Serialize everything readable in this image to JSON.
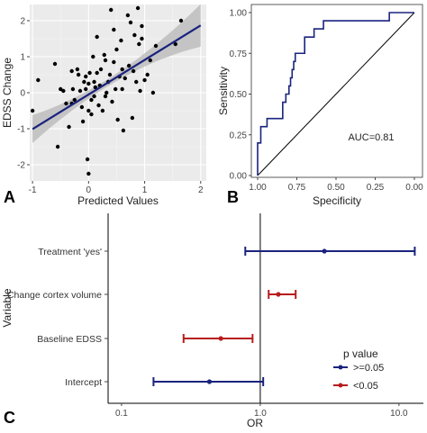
{
  "panel_labels": [
    "A",
    "B",
    "C"
  ],
  "chart_data": [
    {
      "panel": "A",
      "type": "scatter",
      "xlabel": "Predicted Values",
      "ylabel": "EDSS Change",
      "xlim": [
        -1.05,
        2.1
      ],
      "ylim": [
        -2.45,
        2.45
      ],
      "x_ticks": [
        -1,
        0,
        1,
        2
      ],
      "y_ticks": [
        -2,
        -1,
        0,
        1,
        2
      ],
      "grid": true,
      "regression": {
        "intercept": -0.05,
        "slope": 0.96,
        "x_range": [
          -1.0,
          2.0
        ],
        "color": "#1a237e",
        "ci_color": "#bdbdbd"
      },
      "points": [
        [
          -1.0,
          -0.5
        ],
        [
          -0.9,
          0.35
        ],
        [
          -0.6,
          0.8
        ],
        [
          -0.55,
          -1.5
        ],
        [
          -0.5,
          0.1
        ],
        [
          -0.45,
          0.05
        ],
        [
          -0.4,
          -0.3
        ],
        [
          -0.35,
          -0.95
        ],
        [
          -0.3,
          0.6
        ],
        [
          -0.28,
          0.1
        ],
        [
          -0.25,
          -0.2
        ],
        [
          -0.2,
          0.65
        ],
        [
          -0.18,
          0.5
        ],
        [
          -0.15,
          0.05
        ],
        [
          -0.12,
          -0.4
        ],
        [
          -0.1,
          -0.8
        ],
        [
          -0.08,
          0.3
        ],
        [
          -0.05,
          0.1
        ],
        [
          -0.02,
          -1.85
        ],
        [
          0.0,
          0.25
        ],
        [
          0.0,
          -0.5
        ],
        [
          0.02,
          0.55
        ],
        [
          0.05,
          -0.2
        ],
        [
          0.05,
          -0.6
        ],
        [
          0.08,
          1.0
        ],
        [
          0.1,
          0.3
        ],
        [
          0.1,
          -0.1
        ],
        [
          0.12,
          0.15
        ],
        [
          0.15,
          0.55
        ],
        [
          0.18,
          -0.35
        ],
        [
          0.2,
          0.2
        ],
        [
          0.22,
          0.65
        ],
        [
          0.25,
          -0.5
        ],
        [
          0.28,
          1.05
        ],
        [
          0.3,
          0.9
        ],
        [
          0.32,
          0.0
        ],
        [
          0.35,
          0.3
        ],
        [
          0.38,
          0.5
        ],
        [
          0.4,
          2.3
        ],
        [
          0.42,
          -0.25
        ],
        [
          0.45,
          0.85
        ],
        [
          0.48,
          0.1
        ],
        [
          0.5,
          1.2
        ],
        [
          0.52,
          -0.75
        ],
        [
          0.55,
          0.45
        ],
        [
          0.58,
          1.45
        ],
        [
          0.6,
          0.1
        ],
        [
          0.62,
          -1.05
        ],
        [
          0.65,
          0.4
        ],
        [
          0.7,
          2.15
        ],
        [
          0.72,
          0.75
        ],
        [
          0.75,
          1.95
        ],
        [
          0.78,
          -0.7
        ],
        [
          0.8,
          0.6
        ],
        [
          0.82,
          1.6
        ],
        [
          0.85,
          0.3
        ],
        [
          0.88,
          2.35
        ],
        [
          0.9,
          1.35
        ],
        [
          0.92,
          0.05
        ],
        [
          0.95,
          1.5
        ],
        [
          1.0,
          0.35
        ],
        [
          1.05,
          0.5
        ],
        [
          1.1,
          0.9
        ],
        [
          1.15,
          0.0
        ],
        [
          1.2,
          1.3
        ],
        [
          1.55,
          1.35
        ],
        [
          1.65,
          2.0
        ],
        [
          0.0,
          -2.25
        ],
        [
          -0.3,
          -0.3
        ],
        [
          0.15,
          1.55
        ],
        [
          0.3,
          -0.1
        ],
        [
          0.6,
          0.65
        ],
        [
          0.95,
          1.85
        ],
        [
          0.45,
          1.75
        ],
        [
          -0.05,
          0.45
        ]
      ]
    },
    {
      "panel": "B",
      "type": "line",
      "title": "",
      "xlabel": "Specificity",
      "ylabel": "Sensitivity",
      "xlim": [
        1.0,
        0.0
      ],
      "ylim": [
        0.0,
        1.0
      ],
      "x_ticks": [
        "1.00",
        "0.75",
        "0.50",
        "0.25",
        "0.00"
      ],
      "y_ticks": [
        "0.00",
        "0.25",
        "0.50",
        "0.75",
        "1.00"
      ],
      "annotation": "AUC=0.81",
      "grid": false,
      "diagonal": true,
      "roc": [
        [
          1.0,
          0.0
        ],
        [
          1.0,
          0.2
        ],
        [
          0.98,
          0.2
        ],
        [
          0.98,
          0.3
        ],
        [
          0.94,
          0.3
        ],
        [
          0.94,
          0.35
        ],
        [
          0.84,
          0.35
        ],
        [
          0.84,
          0.45
        ],
        [
          0.82,
          0.45
        ],
        [
          0.82,
          0.5
        ],
        [
          0.8,
          0.5
        ],
        [
          0.8,
          0.55
        ],
        [
          0.79,
          0.55
        ],
        [
          0.79,
          0.6
        ],
        [
          0.78,
          0.6
        ],
        [
          0.78,
          0.65
        ],
        [
          0.77,
          0.65
        ],
        [
          0.77,
          0.7
        ],
        [
          0.76,
          0.7
        ],
        [
          0.76,
          0.75
        ],
        [
          0.7,
          0.75
        ],
        [
          0.7,
          0.85
        ],
        [
          0.64,
          0.85
        ],
        [
          0.64,
          0.9
        ],
        [
          0.58,
          0.9
        ],
        [
          0.58,
          0.95
        ],
        [
          0.16,
          0.95
        ],
        [
          0.16,
          1.0
        ],
        [
          0.0,
          1.0
        ]
      ],
      "colors": {
        "roc": "#1a237e",
        "diagonal": "#000000"
      }
    },
    {
      "panel": "C",
      "type": "forest",
      "xlabel": "OR",
      "ylabel": "Variable",
      "x_scale": "log",
      "xlim": [
        0.08,
        15
      ],
      "x_ticks": [
        "0.1",
        "1.0",
        "10.0"
      ],
      "reference_line": 1.0,
      "rows": [
        {
          "label": "Treatment 'yes'",
          "or": 2.9,
          "lo": 0.78,
          "hi": 13.0,
          "group": ">=0.05"
        },
        {
          "label": "Change cortex volume",
          "or": 1.35,
          "lo": 1.15,
          "hi": 1.8,
          "group": "<0.05"
        },
        {
          "label": "Baseline EDSS",
          "or": 0.52,
          "lo": 0.28,
          "hi": 0.88,
          "group": "<0.05"
        },
        {
          "label": "Intercept",
          "or": 0.43,
          "lo": 0.17,
          "hi": 1.05,
          "group": ">=0.05"
        }
      ],
      "legend": {
        "title": "p value",
        "entries": [
          {
            "label": ">=0.05",
            "color": "#1a237e"
          },
          {
            "label": "<0.05",
            "color": "#b71c1c"
          }
        ]
      }
    }
  ]
}
